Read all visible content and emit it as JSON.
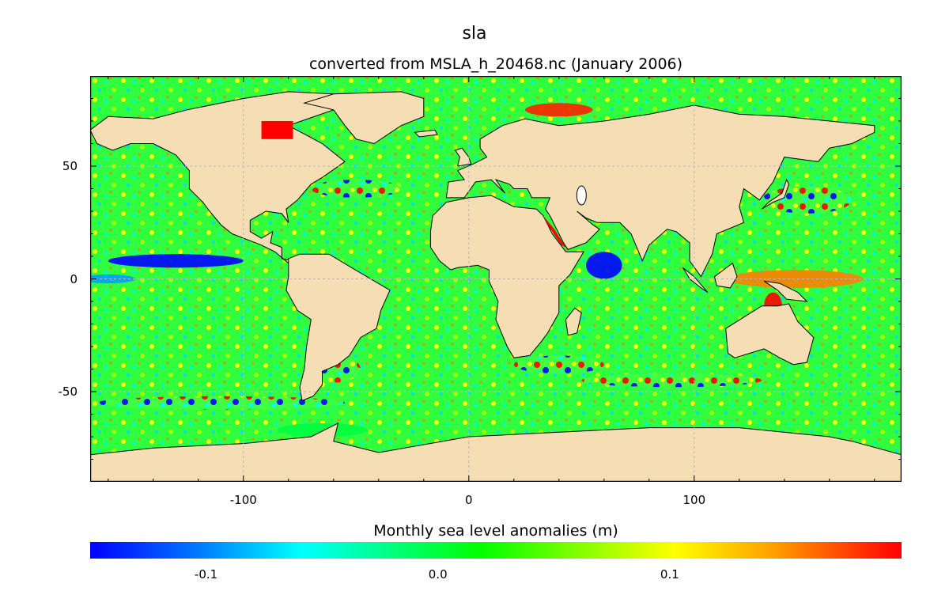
{
  "title": "sla",
  "subtitle": "converted from MSLA_h_20468.nc (January 2006)",
  "colorbar": {
    "label": "Monthly sea level anomalies (m)",
    "ticks": [
      {
        "value": -0.1,
        "label": "-0.1"
      },
      {
        "value": 0.0,
        "label": "0.0"
      },
      {
        "value": 0.1,
        "label": "0.1"
      }
    ],
    "range": [
      -0.15,
      0.2
    ],
    "colors": [
      "#0000ff",
      "#00ffff",
      "#00ff00",
      "#ffff00",
      "#ff0000"
    ]
  },
  "chart_data": {
    "type": "heatmap",
    "x_ticks": [
      {
        "value": -100,
        "label": "-100"
      },
      {
        "value": 0,
        "label": "0"
      },
      {
        "value": 100,
        "label": "100"
      }
    ],
    "y_ticks": [
      {
        "value": 50,
        "label": "50"
      },
      {
        "value": 0,
        "label": "0"
      },
      {
        "value": -50,
        "label": "-50"
      }
    ],
    "xlim": [
      -168,
      192
    ],
    "ylim": [
      -90,
      90
    ],
    "land_color": "#f5deb3",
    "grid": true
  }
}
